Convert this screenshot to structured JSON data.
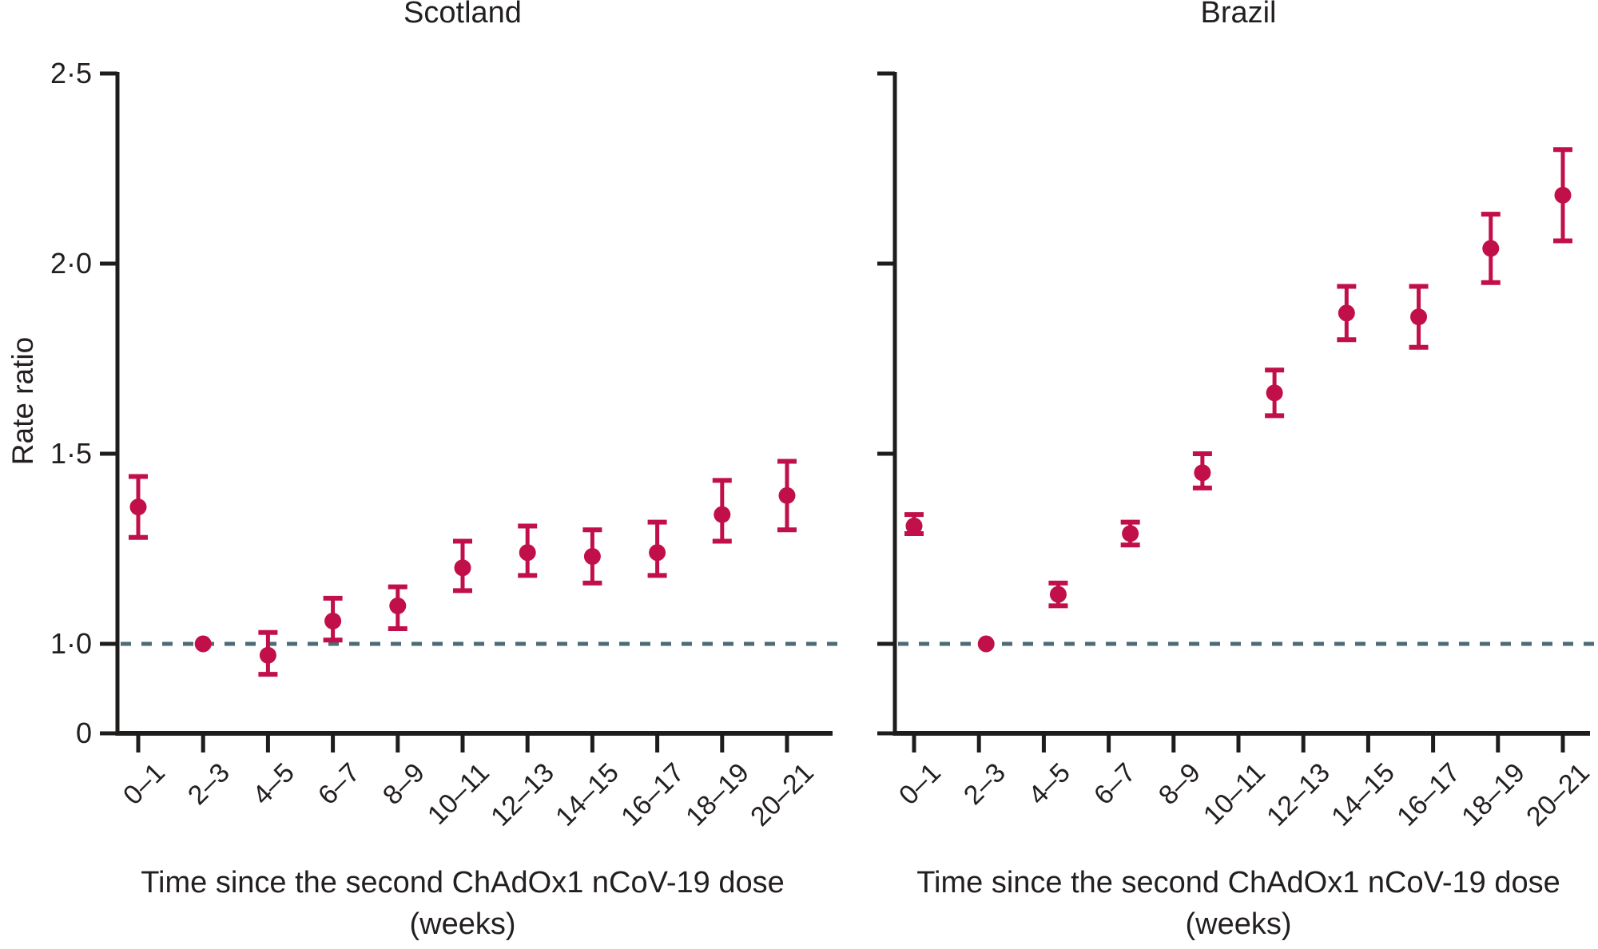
{
  "figure_type": "two-panel rate-ratio error-bar chart",
  "colors": {
    "marker": "#C11049",
    "reference_line": "#4D6B76",
    "axis": "#1E1D1B",
    "text": "#231F20",
    "background": "#FFFFFF"
  },
  "chart_data": [
    {
      "type": "scatter",
      "title": "Scotland",
      "ylabel": "Rate ratio",
      "xlabel_line1": "Time since the second ChAdOx1 nCoV-19 dose",
      "xlabel_line2": "(weeks)",
      "legend": "none",
      "grid": "off",
      "ylim": [
        0,
        2.5
      ],
      "y_axis_break_below": 1.0,
      "reference_line": 1.0,
      "y_ticks": [
        {
          "label": "2·5",
          "value": 2.5
        },
        {
          "label": "2·0",
          "value": 2.0
        },
        {
          "label": "1·5",
          "value": 1.5
        },
        {
          "label": "1·0",
          "value": 1.0
        },
        {
          "label": "0",
          "value": 0
        }
      ],
      "y_tick_labels_shown": true,
      "categories": [
        "0–1",
        "2–3",
        "4–5",
        "6–7",
        "8–9",
        "10–11",
        "12–13",
        "14–15",
        "16–17",
        "18–19",
        "20–21"
      ],
      "points": [
        {
          "label": "0–1",
          "value": 1.36,
          "ci_low": 1.28,
          "ci_high": 1.44,
          "reference": false
        },
        {
          "label": "2–3",
          "value": 1.0,
          "ci_low": null,
          "ci_high": null,
          "reference": true
        },
        {
          "label": "4–5",
          "value": 0.97,
          "ci_low": 0.92,
          "ci_high": 1.03,
          "reference": false
        },
        {
          "label": "6–7",
          "value": 1.06,
          "ci_low": 1.01,
          "ci_high": 1.12,
          "reference": false
        },
        {
          "label": "8–9",
          "value": 1.1,
          "ci_low": 1.04,
          "ci_high": 1.15,
          "reference": false
        },
        {
          "label": "10–11",
          "value": 1.2,
          "ci_low": 1.14,
          "ci_high": 1.27,
          "reference": false
        },
        {
          "label": "12–13",
          "value": 1.24,
          "ci_low": 1.18,
          "ci_high": 1.31,
          "reference": false
        },
        {
          "label": "14–15",
          "value": 1.23,
          "ci_low": 1.16,
          "ci_high": 1.3,
          "reference": false
        },
        {
          "label": "16–17",
          "value": 1.24,
          "ci_low": 1.18,
          "ci_high": 1.32,
          "reference": false
        },
        {
          "label": "18–19",
          "value": 1.34,
          "ci_low": 1.27,
          "ci_high": 1.43,
          "reference": false
        },
        {
          "label": "20–21",
          "value": 1.39,
          "ci_low": 1.3,
          "ci_high": 1.48,
          "reference": false
        }
      ]
    },
    {
      "type": "scatter",
      "title": "Brazil",
      "ylabel": "",
      "xlabel_line1": "Time since the second ChAdOx1 nCoV-19 dose",
      "xlabel_line2": "(weeks)",
      "legend": "none",
      "grid": "off",
      "ylim": [
        0,
        2.5
      ],
      "y_axis_break_below": 1.0,
      "reference_line": 1.0,
      "y_ticks": [
        {
          "label": "2·5",
          "value": 2.5
        },
        {
          "label": "2·0",
          "value": 2.0
        },
        {
          "label": "1·5",
          "value": 1.5
        },
        {
          "label": "1·0",
          "value": 1.0
        },
        {
          "label": "0",
          "value": 0
        }
      ],
      "y_tick_labels_shown": false,
      "categories": [
        "0–1",
        "2–3",
        "4–5",
        "6–7",
        "8–9",
        "10–11",
        "12–13",
        "14–15",
        "16–17",
        "18–19",
        "20–21"
      ],
      "points": [
        {
          "label": "0–1",
          "value": 1.31,
          "ci_low": 1.29,
          "ci_high": 1.34,
          "reference": false
        },
        {
          "label": "2–3",
          "value": 1.0,
          "ci_low": null,
          "ci_high": null,
          "reference": true
        },
        {
          "label": "4–5",
          "value": 1.13,
          "ci_low": 1.1,
          "ci_high": 1.16,
          "reference": false
        },
        {
          "label": "6–7",
          "value": 1.29,
          "ci_low": 1.26,
          "ci_high": 1.32,
          "reference": false
        },
        {
          "label": "8–9",
          "value": 1.45,
          "ci_low": 1.41,
          "ci_high": 1.5,
          "reference": false
        },
        {
          "label": "10–11",
          "value": 1.66,
          "ci_low": 1.6,
          "ci_high": 1.72,
          "reference": false
        },
        {
          "label": "12–13",
          "value": 1.87,
          "ci_low": 1.8,
          "ci_high": 1.94,
          "reference": false
        },
        {
          "label": "14–15",
          "value": 1.86,
          "ci_low": 1.78,
          "ci_high": 1.94,
          "reference": false
        },
        {
          "label": "16–17",
          "value": 2.04,
          "ci_low": 1.95,
          "ci_high": 2.13,
          "reference": false
        },
        {
          "label": "18–19",
          "value": 2.18,
          "ci_low": 2.06,
          "ci_high": 2.3,
          "reference": false
        }
      ]
    }
  ]
}
